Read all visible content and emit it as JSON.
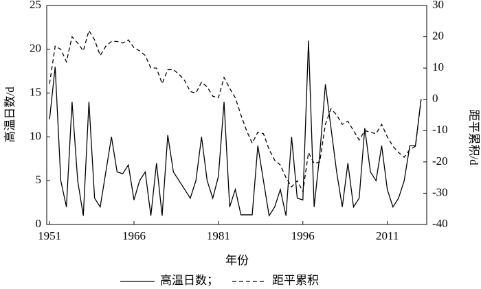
{
  "chart_data": {
    "type": "line",
    "xlabel": "年份",
    "ylabel": "高温日数/d",
    "y2label": "距平累积/d",
    "x": [
      1951,
      1952,
      1953,
      1954,
      1955,
      1956,
      1957,
      1958,
      1959,
      1960,
      1961,
      1962,
      1963,
      1964,
      1965,
      1966,
      1967,
      1968,
      1969,
      1970,
      1971,
      1972,
      1973,
      1974,
      1975,
      1976,
      1977,
      1978,
      1979,
      1980,
      1981,
      1982,
      1983,
      1984,
      1985,
      1986,
      1987,
      1988,
      1989,
      1990,
      1991,
      1992,
      1993,
      1994,
      1995,
      1996,
      1997,
      1998,
      1999,
      2000,
      2001,
      2002,
      2003,
      2004,
      2005,
      2006,
      2007,
      2008,
      2009,
      2010,
      2011,
      2012,
      2013,
      2014,
      2015,
      2016,
      2017
    ],
    "xlim": [
      1950.5,
      2018
    ],
    "xticks": [
      1951,
      1966,
      1981,
      1996,
      2011
    ],
    "ylim": [
      0,
      25
    ],
    "yticks": [
      0,
      5,
      10,
      15,
      20,
      25
    ],
    "y2lim": [
      -40,
      30
    ],
    "y2ticks": [
      -40,
      -30,
      -20,
      -10,
      0,
      10,
      20,
      30
    ],
    "legend_separator": "；",
    "series": [
      {
        "name": "高温日数",
        "color": "#000000",
        "line_style": "solid",
        "values": [
          12,
          18,
          5,
          2,
          14,
          5,
          1,
          14,
          3,
          2,
          6,
          10,
          6,
          5.8,
          6.8,
          2.8,
          5,
          6,
          1,
          7,
          1,
          10.2,
          6,
          5,
          4,
          3,
          5,
          10,
          5,
          3,
          5.5,
          14,
          2,
          4,
          1.1,
          1.1,
          1.1,
          9,
          5,
          1,
          2,
          4,
          1,
          10,
          3,
          2.8,
          21,
          2,
          8,
          16,
          11,
          6,
          2,
          7,
          2,
          3,
          11,
          6,
          5,
          9,
          4,
          2,
          3,
          5,
          9,
          9,
          14.3
        ]
      },
      {
        "name": "距平累积",
        "color": "#000000",
        "line_style": "dashed",
        "axis": "y2",
        "values": [
          5,
          17,
          16,
          12,
          20,
          18,
          15.5,
          22,
          19,
          14,
          17,
          18.5,
          18.5,
          18,
          19,
          16.5,
          15.5,
          14,
          10,
          10,
          5,
          9.5,
          9.5,
          8,
          6,
          2.5,
          2,
          5.5,
          4,
          1,
          0.5,
          7,
          3.5,
          0.5,
          -5,
          -10,
          -14,
          -10.5,
          -11,
          -16,
          -19.5,
          -21,
          -25,
          -28,
          -26,
          -29.5,
          -17,
          -20.5,
          -20,
          -8,
          -3,
          -5,
          -8,
          -7,
          -10,
          -13,
          -10,
          -10.5,
          -11,
          -8,
          -12,
          -15,
          -17,
          -18.5,
          -16,
          -15,
          0
        ]
      }
    ]
  }
}
